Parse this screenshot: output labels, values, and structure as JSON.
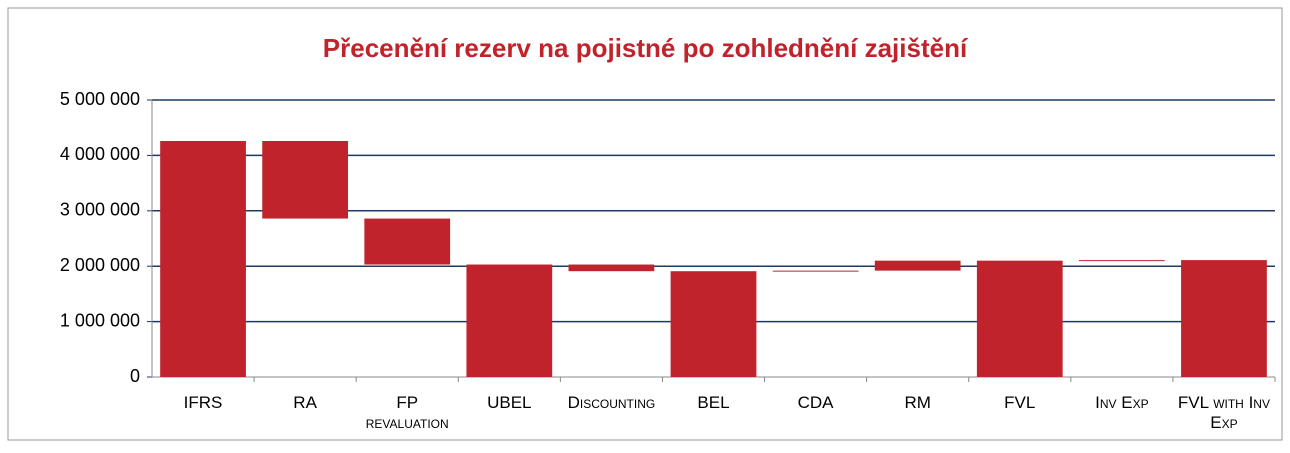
{
  "chart_data": {
    "type": "waterfall",
    "title": "Přecenění rezerv na pojistné po zohlednění zajištění",
    "categories": [
      "IFRS",
      "RA",
      "FP revaluation",
      "UBEL",
      "Discounting",
      "BEL",
      "CDA",
      "RM",
      "FVL",
      "Inv Exp",
      "FVL with Inv Exp"
    ],
    "values": [
      4260000,
      -1400000,
      -830000,
      2030000,
      -120000,
      1910000,
      10000,
      180000,
      2100000,
      10000,
      2110000
    ],
    "is_total": [
      true,
      false,
      false,
      true,
      false,
      true,
      false,
      false,
      true,
      false,
      true
    ],
    "color": "#c0232c",
    "ylim": [
      0,
      5000000
    ],
    "yticks": [
      0,
      {
        "value": 1000000,
        "label": "1 000 000"
      },
      {
        "value": 2000000,
        "label": "2 000 000"
      },
      {
        "value": 3000000,
        "label": "3 000 000"
      },
      {
        "value": 4000000,
        "label": "4 000 000"
      },
      {
        "value": 5000000,
        "label": "5 000 000"
      }
    ],
    "grid": true
  }
}
